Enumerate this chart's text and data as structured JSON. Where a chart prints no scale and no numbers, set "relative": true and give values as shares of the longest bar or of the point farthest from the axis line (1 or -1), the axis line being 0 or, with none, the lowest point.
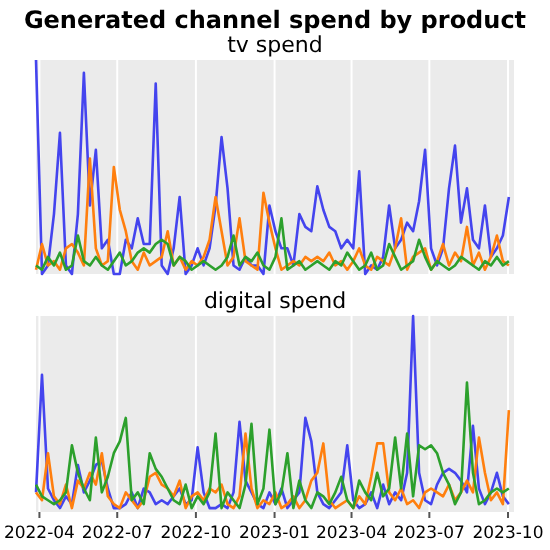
{
  "chart_data": [
    {
      "type": "line",
      "title": "Generated channel spend by product",
      "subtitle": "tv spend",
      "relative": true,
      "grid": "x",
      "tick_labels": false,
      "xlim": [
        "2022-03-28",
        "2023-10-08"
      ],
      "xticks": [
        "2022-04",
        "2022-07",
        "2022-10",
        "2023-01",
        "2023-04",
        "2023-07",
        "2023-10"
      ],
      "x": [
        "2022-03-28",
        "2022-04-04",
        "2022-04-11",
        "2022-04-18",
        "2022-04-25",
        "2022-05-02",
        "2022-05-09",
        "2022-05-16",
        "2022-05-23",
        "2022-05-30",
        "2022-06-06",
        "2022-06-13",
        "2022-06-20",
        "2022-06-27",
        "2022-07-04",
        "2022-07-11",
        "2022-07-18",
        "2022-07-25",
        "2022-08-01",
        "2022-08-08",
        "2022-08-15",
        "2022-08-22",
        "2022-08-29",
        "2022-09-05",
        "2022-09-12",
        "2022-09-19",
        "2022-09-26",
        "2022-10-03",
        "2022-10-10",
        "2022-10-17",
        "2022-10-24",
        "2022-10-31",
        "2022-11-07",
        "2022-11-14",
        "2022-11-21",
        "2022-11-28",
        "2022-12-05",
        "2022-12-12",
        "2022-12-19",
        "2022-12-26",
        "2023-01-02",
        "2023-01-09",
        "2023-01-16",
        "2023-01-23",
        "2023-01-30",
        "2023-02-06",
        "2023-02-13",
        "2023-02-20",
        "2023-02-27",
        "2023-03-06",
        "2023-03-13",
        "2023-03-20",
        "2023-03-27",
        "2023-04-03",
        "2023-04-10",
        "2023-04-17",
        "2023-04-24",
        "2023-05-01",
        "2023-05-08",
        "2023-05-15",
        "2023-05-22",
        "2023-05-29",
        "2023-06-05",
        "2023-06-12",
        "2023-06-19",
        "2023-06-26",
        "2023-07-03",
        "2023-07-10",
        "2023-07-17",
        "2023-07-24",
        "2023-07-31",
        "2023-08-07",
        "2023-08-14",
        "2023-08-21",
        "2023-08-28",
        "2023-09-04",
        "2023-09-11",
        "2023-09-18",
        "2023-09-25",
        "2023-10-02"
      ],
      "series": [
        {
          "color": "#4444ee",
          "values": [
            1.0,
            0,
            0.04,
            0.28,
            0.66,
            0.04,
            0,
            0.28,
            0.94,
            0.32,
            0.58,
            0.12,
            0.16,
            0,
            0,
            0.16,
            0.12,
            0.26,
            0.14,
            0.14,
            0.89,
            0.04,
            0,
            0.12,
            0.36,
            0,
            0.04,
            0.12,
            0.04,
            0.12,
            0.32,
            0.64,
            0.4,
            0.04,
            0.02,
            0.08,
            0.04,
            0.04,
            0,
            0.32,
            0.2,
            0.12,
            0.12,
            0.04,
            0.28,
            0.22,
            0.2,
            0.41,
            0.3,
            0.22,
            0.2,
            0.12,
            0.16,
            0.12,
            0.48,
            0,
            0.04,
            0.02,
            0.08,
            0.32,
            0.12,
            0.16,
            0.24,
            0.2,
            0.34,
            0.58,
            0.12,
            0.04,
            0.12,
            0.4,
            0.6,
            0.24,
            0.4,
            0.16,
            0.12,
            0.32,
            0.08,
            0.12,
            0.18,
            0.36
          ]
        },
        {
          "color": "#ff7f0e",
          "values": [
            0.02,
            0.14,
            0.04,
            0.06,
            0.02,
            0.12,
            0.14,
            0.1,
            0.04,
            0.54,
            0.12,
            0.04,
            0.06,
            0.5,
            0.3,
            0.2,
            0.06,
            0.02,
            0.1,
            0.04,
            0.06,
            0.08,
            0.2,
            0.04,
            0.08,
            0.02,
            0.06,
            0.04,
            0.08,
            0.16,
            0.36,
            0.2,
            0.04,
            0.08,
            0.26,
            0.06,
            0.04,
            0.02,
            0.38,
            0.24,
            0.12,
            0.02,
            0.04,
            0.06,
            0.04,
            0.08,
            0.06,
            0.08,
            0.06,
            0.1,
            0.04,
            0.06,
            0.02,
            0.06,
            0.12,
            0.04,
            0.02,
            0.08,
            0.06,
            0.04,
            0.12,
            0.26,
            0.02,
            0.08,
            0.1,
            0.12,
            0.02,
            0.06,
            0.14,
            0.04,
            0.1,
            0.06,
            0.22,
            0.04,
            0.1,
            0.02,
            0.08,
            0.18,
            0.06,
            0.04
          ]
        },
        {
          "color": "#2ca02c",
          "values": [
            0.04,
            0.02,
            0.08,
            0.04,
            0.1,
            0.02,
            0.04,
            0.18,
            0.06,
            0.04,
            0.08,
            0.04,
            0.02,
            0.06,
            0.1,
            0.04,
            0.06,
            0.1,
            0.12,
            0.1,
            0.14,
            0.16,
            0.14,
            0.04,
            0.08,
            0.06,
            0.02,
            0.04,
            0.06,
            0.04,
            0.02,
            0.04,
            0.08,
            0.18,
            0.04,
            0.08,
            0.06,
            0.1,
            0.04,
            0.02,
            0.08,
            0.26,
            0.02,
            0.04,
            0.06,
            0.02,
            0.04,
            0.06,
            0.04,
            0.02,
            0.06,
            0.04,
            0.1,
            0.06,
            0.02,
            0.04,
            0.1,
            0.02,
            0.04,
            0.14,
            0.08,
            0.02,
            0.04,
            0.06,
            0.16,
            0.08,
            0.02,
            0.06,
            0.04,
            0.02,
            0.04,
            0.08,
            0.06,
            0.04,
            0.02,
            0.06,
            0.04,
            0.08,
            0.04,
            0.06
          ]
        }
      ]
    },
    {
      "type": "line",
      "subtitle": "digital spend",
      "relative": true,
      "grid": "x",
      "tick_labels": "x",
      "xlim": [
        "2022-03-28",
        "2023-10-08"
      ],
      "xticks": [
        "2022-04",
        "2022-07",
        "2022-10",
        "2023-01",
        "2023-04",
        "2023-07",
        "2023-10"
      ],
      "x": [
        "2022-03-28",
        "2022-04-04",
        "2022-04-11",
        "2022-04-18",
        "2022-04-25",
        "2022-05-02",
        "2022-05-09",
        "2022-05-16",
        "2022-05-23",
        "2022-05-30",
        "2022-06-06",
        "2022-06-13",
        "2022-06-20",
        "2022-06-27",
        "2022-07-04",
        "2022-07-11",
        "2022-07-18",
        "2022-07-25",
        "2022-08-01",
        "2022-08-08",
        "2022-08-15",
        "2022-08-22",
        "2022-08-29",
        "2022-09-05",
        "2022-09-12",
        "2022-09-19",
        "2022-09-26",
        "2022-10-03",
        "2022-10-10",
        "2022-10-17",
        "2022-10-24",
        "2022-10-31",
        "2022-11-07",
        "2022-11-14",
        "2022-11-21",
        "2022-11-28",
        "2022-12-05",
        "2022-12-12",
        "2022-12-19",
        "2022-12-26",
        "2023-01-02",
        "2023-01-09",
        "2023-01-16",
        "2023-01-23",
        "2023-01-30",
        "2023-02-06",
        "2023-02-13",
        "2023-02-20",
        "2023-02-27",
        "2023-03-06",
        "2023-03-13",
        "2023-03-20",
        "2023-03-27",
        "2023-04-03",
        "2023-04-10",
        "2023-04-17",
        "2023-04-24",
        "2023-05-01",
        "2023-05-08",
        "2023-05-15",
        "2023-05-22",
        "2023-05-29",
        "2023-06-05",
        "2023-06-12",
        "2023-06-19",
        "2023-06-26",
        "2023-07-03",
        "2023-07-10",
        "2023-07-17",
        "2023-07-24",
        "2023-07-31",
        "2023-08-07",
        "2023-08-14",
        "2023-08-21",
        "2023-08-28",
        "2023-09-04",
        "2023-09-11",
        "2023-09-18",
        "2023-09-25",
        "2023-10-02"
      ],
      "series": [
        {
          "color": "#4444ee",
          "values": [
            0.1,
            0.7,
            0.12,
            0.06,
            0.02,
            0.08,
            0.04,
            0.24,
            0.1,
            0.16,
            0.24,
            0.26,
            0.12,
            0.02,
            0.02,
            0.04,
            0.1,
            0.02,
            0.12,
            0.1,
            0.04,
            0.06,
            0.04,
            0.08,
            0.12,
            0.04,
            0.06,
            0.33,
            0.1,
            0.02,
            0.02,
            0.04,
            0.02,
            0.1,
            0.46,
            0.16,
            0.1,
            0.04,
            0.02,
            0.1,
            0.04,
            0.12,
            0.02,
            0.06,
            0.1,
            0.48,
            0.36,
            0.1,
            0.04,
            0.02,
            0.06,
            0.1,
            0.34,
            0.06,
            0.02,
            0.04,
            0.1,
            0.02,
            0.14,
            0.04,
            0.1,
            0.06,
            0.2,
            1.0,
            0.2,
            0.06,
            0.04,
            0.14,
            0.2,
            0.22,
            0.2,
            0.16,
            0.1,
            0.44,
            0.12,
            0.04,
            0.1,
            0.2,
            0.08,
            0.04
          ]
        },
        {
          "color": "#ff7f0e",
          "values": [
            0.1,
            0.06,
            0.3,
            0.08,
            0.04,
            0.14,
            0.02,
            0.16,
            0.12,
            0.2,
            0.14,
            0.3,
            0.08,
            0.04,
            0.02,
            0.1,
            0.06,
            0.02,
            0.06,
            0.18,
            0.2,
            0.14,
            0.12,
            0.08,
            0.16,
            0.02,
            0.08,
            0.1,
            0.06,
            0.12,
            0.1,
            0.14,
            0.04,
            0.02,
            0.08,
            0.4,
            0.12,
            0.02,
            0.06,
            0.04,
            0.1,
            0.02,
            0.04,
            0.08,
            0.02,
            0.06,
            0.16,
            0.2,
            0.35,
            0.06,
            0.02,
            0.04,
            0.06,
            0.02,
            0.08,
            0.04,
            0.18,
            0.35,
            0.35,
            0.1,
            0.06,
            0.12,
            0.04,
            0.06,
            0.02,
            0.1,
            0.12,
            0.1,
            0.08,
            0.14,
            0.06,
            0.1,
            0.16,
            0.1,
            0.38,
            0.2,
            0.06,
            0.1,
            0.04,
            0.52
          ]
        },
        {
          "color": "#2ca02c",
          "values": [
            0.14,
            0.08,
            0.06,
            0.04,
            0.06,
            0.1,
            0.34,
            0.2,
            0.12,
            0.06,
            0.38,
            0.1,
            0.18,
            0.3,
            0.36,
            0.48,
            0.06,
            0.1,
            0.04,
            0.3,
            0.22,
            0.18,
            0.12,
            0.06,
            0.04,
            0.14,
            0.02,
            0.08,
            0.04,
            0.1,
            0.4,
            0.02,
            0.1,
            0.06,
            0.02,
            0.14,
            0.45,
            0.04,
            0.12,
            0.42,
            0.04,
            0.1,
            0.3,
            0.02,
            0.16,
            0.06,
            0.02,
            0.1,
            0.08,
            0.04,
            0.1,
            0.18,
            0.06,
            0.02,
            0.16,
            0.1,
            0.06,
            0.2,
            0.08,
            0.12,
            0.38,
            0.12,
            0.4,
            0.08,
            0.34,
            0.32,
            0.34,
            0.3,
            0.2,
            0.14,
            0.04,
            0.1,
            0.66,
            0.2,
            0.04,
            0.06,
            0.1,
            0.12,
            0.1,
            0.12
          ]
        }
      ]
    }
  ]
}
